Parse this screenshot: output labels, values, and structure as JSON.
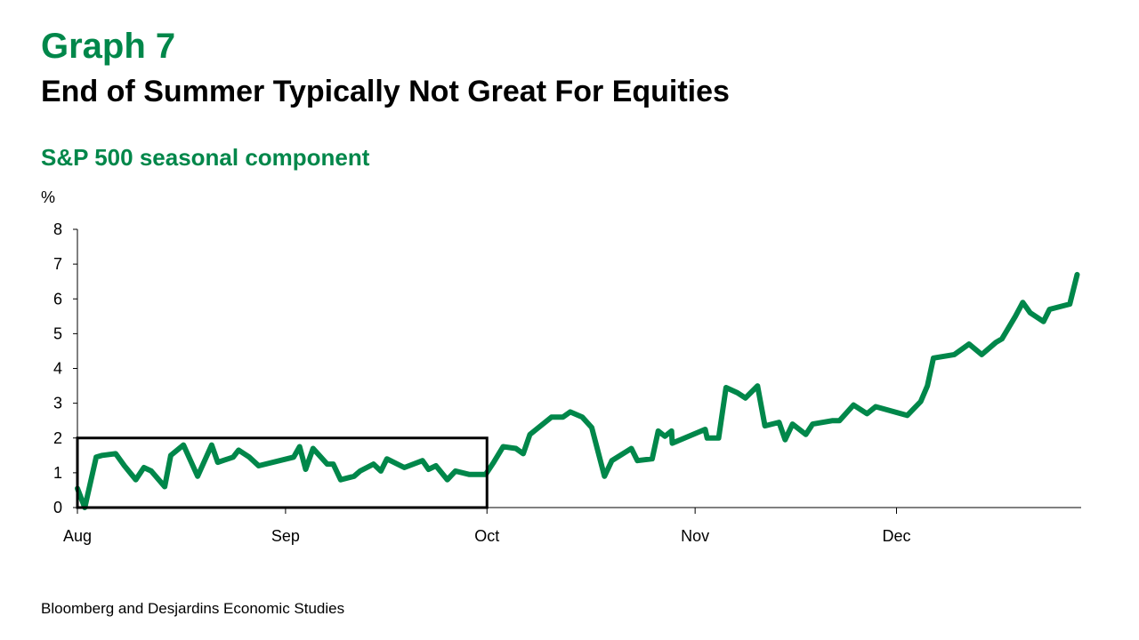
{
  "header": {
    "graph_label": "Graph 7",
    "title": "End of Summer Typically Not Great For Equities",
    "subtitle": "S&P 500 seasonal component"
  },
  "source": "Bloomberg and Desjardins Economic Studies",
  "colors": {
    "line": "#00874A",
    "box": "#000000"
  },
  "chart_data": {
    "type": "line",
    "title": "S&P 500 seasonal component",
    "ylabel": "%",
    "xlabel": "",
    "ylim": [
      0,
      8
    ],
    "xlim": [
      0,
      149.5
    ],
    "x_unit": "days since Aug 1",
    "yticks": [
      "0",
      "1",
      "2",
      "3",
      "4",
      "5",
      "6",
      "7",
      "8"
    ],
    "xticks": [
      {
        "label": "Aug",
        "x": 0
      },
      {
        "label": "Sep",
        "x": 31
      },
      {
        "label": "Oct",
        "x": 61
      },
      {
        "label": "Nov",
        "x": 92
      },
      {
        "label": "Dec",
        "x": 122
      }
    ],
    "annotation_box": {
      "x": [
        0,
        61
      ],
      "y": [
        0,
        2
      ]
    },
    "series": [
      {
        "name": "S&P 500 seasonal component",
        "x": [
          0,
          1.1,
          2.8,
          3.7,
          5.7,
          7.0,
          8.7,
          9.9,
          11.0,
          13.0,
          13.9,
          15.8,
          17.9,
          20.0,
          20.9,
          23.2,
          24.0,
          25.6,
          27.0,
          32.2,
          33.1,
          34.0,
          35.1,
          37.2,
          38.1,
          39.2,
          41.2,
          42.1,
          44.1,
          45.2,
          46.1,
          48.7,
          51.4,
          52.3,
          53.4,
          55.1,
          56.3,
          58.4,
          60.8,
          62.0,
          63.4,
          65.3,
          66.4,
          67.4,
          70.6,
          72.3,
          73.4,
          75.2,
          76.6,
          78.5,
          79.6,
          82.5,
          83.4,
          85.6,
          86.5,
          87.5,
          88.5,
          88.6,
          93.5,
          93.8,
          95.5,
          96.6,
          98.3,
          99.5,
          101.3,
          102.4,
          104.5,
          105.4,
          106.5,
          108.5,
          109.5,
          112.5,
          113.5,
          115.6,
          117.6,
          118.9,
          123.6,
          125.6,
          126.6,
          127.5,
          130.6,
          132.8,
          134.7,
          136.8,
          137.7,
          139.7,
          140.8,
          141.9,
          143.9,
          144.8,
          147.8,
          148.9
        ],
        "values": [
          0.55,
          0.0,
          1.45,
          1.5,
          1.55,
          1.2,
          0.8,
          1.15,
          1.05,
          0.6,
          1.5,
          1.8,
          0.9,
          1.8,
          1.3,
          1.45,
          1.65,
          1.45,
          1.2,
          1.45,
          1.75,
          1.1,
          1.7,
          1.25,
          1.25,
          0.8,
          0.9,
          1.05,
          1.25,
          1.05,
          1.4,
          1.15,
          1.35,
          1.1,
          1.2,
          0.8,
          1.05,
          0.95,
          0.95,
          1.3,
          1.75,
          1.7,
          1.55,
          2.1,
          2.6,
          2.6,
          2.75,
          2.6,
          2.3,
          0.9,
          1.35,
          1.7,
          1.35,
          1.4,
          2.2,
          2.05,
          2.2,
          1.85,
          2.25,
          2.0,
          2.0,
          3.45,
          3.3,
          3.15,
          3.5,
          2.35,
          2.45,
          1.95,
          2.4,
          2.1,
          2.4,
          2.5,
          2.5,
          2.95,
          2.7,
          2.9,
          2.65,
          3.05,
          3.5,
          4.3,
          4.4,
          4.7,
          4.4,
          4.75,
          4.85,
          5.5,
          5.9,
          5.6,
          5.35,
          5.7,
          5.85,
          6.7
        ]
      }
    ]
  }
}
